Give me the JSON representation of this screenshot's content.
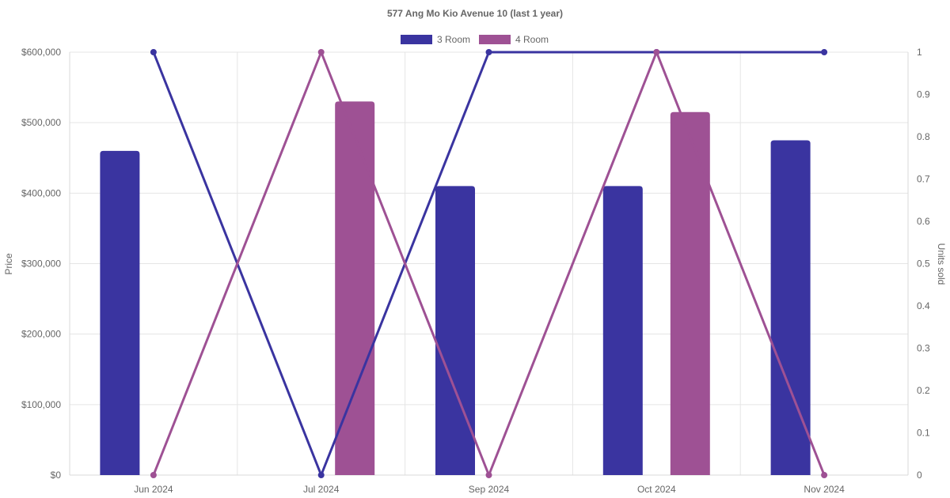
{
  "chart_data": {
    "type": "bar",
    "title": "577 Ang Mo Kio Avenue 10 (last 1 year)",
    "categories": [
      "Jun 2024",
      "Jul 2024",
      "Sep 2024",
      "Oct 2024",
      "Nov 2024"
    ],
    "y_left": {
      "label": "Price",
      "lim": [
        0,
        600000
      ],
      "ticks": [
        "$0",
        "$100,000",
        "$200,000",
        "$300,000",
        "$400,000",
        "$500,000",
        "$600,000"
      ]
    },
    "y_right": {
      "label": "Units sold",
      "lim": [
        0,
        1
      ],
      "ticks": [
        "0",
        "0.1",
        "0.2",
        "0.3",
        "0.4",
        "0.5",
        "0.6",
        "0.7",
        "0.8",
        "0.9",
        "1"
      ]
    },
    "legend": {
      "position": "top",
      "items": [
        {
          "label": "3 Room",
          "color": "#3a34a0"
        },
        {
          "label": "4 Room",
          "color": "#9e5194"
        }
      ]
    },
    "series": [
      {
        "name": "3 Room",
        "color": "#3a34a0",
        "price": [
          460000,
          null,
          410000,
          410000,
          475000
        ],
        "units_sold": [
          1,
          0,
          1,
          1,
          1
        ]
      },
      {
        "name": "4 Room",
        "color": "#9e5194",
        "price": [
          null,
          530000,
          null,
          515000,
          null
        ],
        "units_sold": [
          0,
          1,
          0,
          1,
          0
        ]
      }
    ],
    "grid": true
  }
}
